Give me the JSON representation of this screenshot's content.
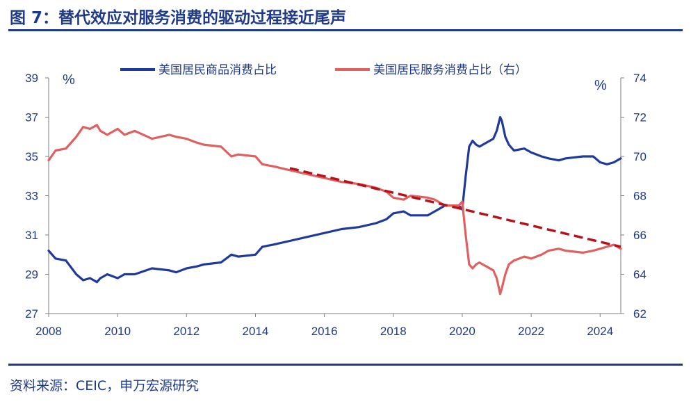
{
  "header": {
    "title": "图 7：替代效应对服务消费的驱动过程接近尾声"
  },
  "footer": {
    "source": "资料来源：CEIC，申万宏源研究"
  },
  "chart_data": {
    "type": "line",
    "left_unit": "%",
    "right_unit": "%",
    "x_ticks": [
      "2008",
      "2010",
      "2012",
      "2014",
      "2016",
      "2018",
      "2020",
      "2022",
      "2024"
    ],
    "x_range": [
      2008,
      2024.6
    ],
    "y_left": {
      "range": [
        27,
        39
      ],
      "ticks": [
        27,
        29,
        31,
        33,
        35,
        37,
        39
      ]
    },
    "y_right": {
      "range": [
        62,
        74
      ],
      "ticks": [
        62,
        64,
        66,
        68,
        70,
        72,
        74
      ]
    },
    "legend_position": "top",
    "series": [
      {
        "name": "美国居民商品消费占比",
        "axis": "left",
        "color": "#1f3a9a",
        "x": [
          2008.0,
          2008.2,
          2008.5,
          2008.8,
          2009.0,
          2009.2,
          2009.4,
          2009.5,
          2009.7,
          2010.0,
          2010.2,
          2010.5,
          2011.0,
          2011.5,
          2011.7,
          2012.0,
          2012.3,
          2012.5,
          2013.0,
          2013.3,
          2013.5,
          2014.0,
          2014.2,
          2014.5,
          2015.0,
          2015.5,
          2016.0,
          2016.5,
          2017.0,
          2017.5,
          2017.8,
          2018.0,
          2018.3,
          2018.5,
          2019.0,
          2019.2,
          2019.5,
          2019.9,
          2020.0,
          2020.1,
          2020.2,
          2020.3,
          2020.4,
          2020.5,
          2020.7,
          2020.9,
          2021.0,
          2021.1,
          2021.15,
          2021.25,
          2021.35,
          2021.5,
          2021.8,
          2022.0,
          2022.3,
          2022.5,
          2022.8,
          2023.0,
          2023.5,
          2023.8,
          2024.0,
          2024.2,
          2024.4,
          2024.6
        ],
        "values": [
          30.2,
          29.8,
          29.7,
          29.0,
          28.7,
          28.8,
          28.6,
          28.8,
          29.0,
          28.8,
          29.0,
          29.0,
          29.3,
          29.2,
          29.1,
          29.3,
          29.4,
          29.5,
          29.6,
          30.0,
          29.9,
          30.0,
          30.4,
          30.5,
          30.7,
          30.9,
          31.1,
          31.3,
          31.4,
          31.6,
          31.8,
          32.1,
          32.2,
          32.0,
          32.0,
          32.2,
          32.5,
          32.5,
          32.3,
          34.0,
          35.5,
          35.8,
          35.6,
          35.5,
          35.7,
          35.9,
          36.3,
          37.0,
          36.8,
          36.0,
          35.6,
          35.3,
          35.4,
          35.2,
          35.0,
          34.9,
          34.8,
          34.9,
          35.0,
          35.0,
          34.7,
          34.6,
          34.7,
          34.9
        ]
      },
      {
        "name": "美国居民服务消费占比（右）",
        "axis": "right",
        "color": "#e06060",
        "x": [
          2008.0,
          2008.2,
          2008.5,
          2008.8,
          2009.0,
          2009.2,
          2009.4,
          2009.5,
          2009.7,
          2010.0,
          2010.2,
          2010.5,
          2011.0,
          2011.5,
          2011.7,
          2012.0,
          2012.3,
          2012.5,
          2013.0,
          2013.3,
          2013.5,
          2014.0,
          2014.2,
          2014.5,
          2015.0,
          2015.5,
          2016.0,
          2016.5,
          2017.0,
          2017.5,
          2017.8,
          2018.0,
          2018.3,
          2018.5,
          2019.0,
          2019.2,
          2019.5,
          2019.9,
          2020.0,
          2020.1,
          2020.2,
          2020.3,
          2020.4,
          2020.5,
          2020.7,
          2020.9,
          2021.0,
          2021.1,
          2021.15,
          2021.25,
          2021.35,
          2021.5,
          2021.8,
          2022.0,
          2022.3,
          2022.5,
          2022.8,
          2023.0,
          2023.5,
          2023.8,
          2024.0,
          2024.2,
          2024.4,
          2024.6
        ],
        "values": [
          69.8,
          70.3,
          70.4,
          71.0,
          71.5,
          71.4,
          71.6,
          71.3,
          71.1,
          71.4,
          71.1,
          71.3,
          70.9,
          71.1,
          71.0,
          70.9,
          70.7,
          70.6,
          70.5,
          70.0,
          70.1,
          70.0,
          69.6,
          69.5,
          69.3,
          69.1,
          68.9,
          68.7,
          68.6,
          68.4,
          68.2,
          67.9,
          67.8,
          68.0,
          67.9,
          67.8,
          67.5,
          67.5,
          67.7,
          66.0,
          64.5,
          64.3,
          64.5,
          64.6,
          64.4,
          64.2,
          63.8,
          63.0,
          63.3,
          64.0,
          64.5,
          64.7,
          64.9,
          64.8,
          65.0,
          65.2,
          65.3,
          65.2,
          65.1,
          65.2,
          65.3,
          65.4,
          65.5,
          65.3
        ]
      },
      {
        "name": "",
        "axis": "right",
        "style": "dashed",
        "color": "#b5121b",
        "x": [
          2015.0,
          2024.6
        ],
        "values": [
          69.4,
          65.4
        ]
      }
    ]
  }
}
